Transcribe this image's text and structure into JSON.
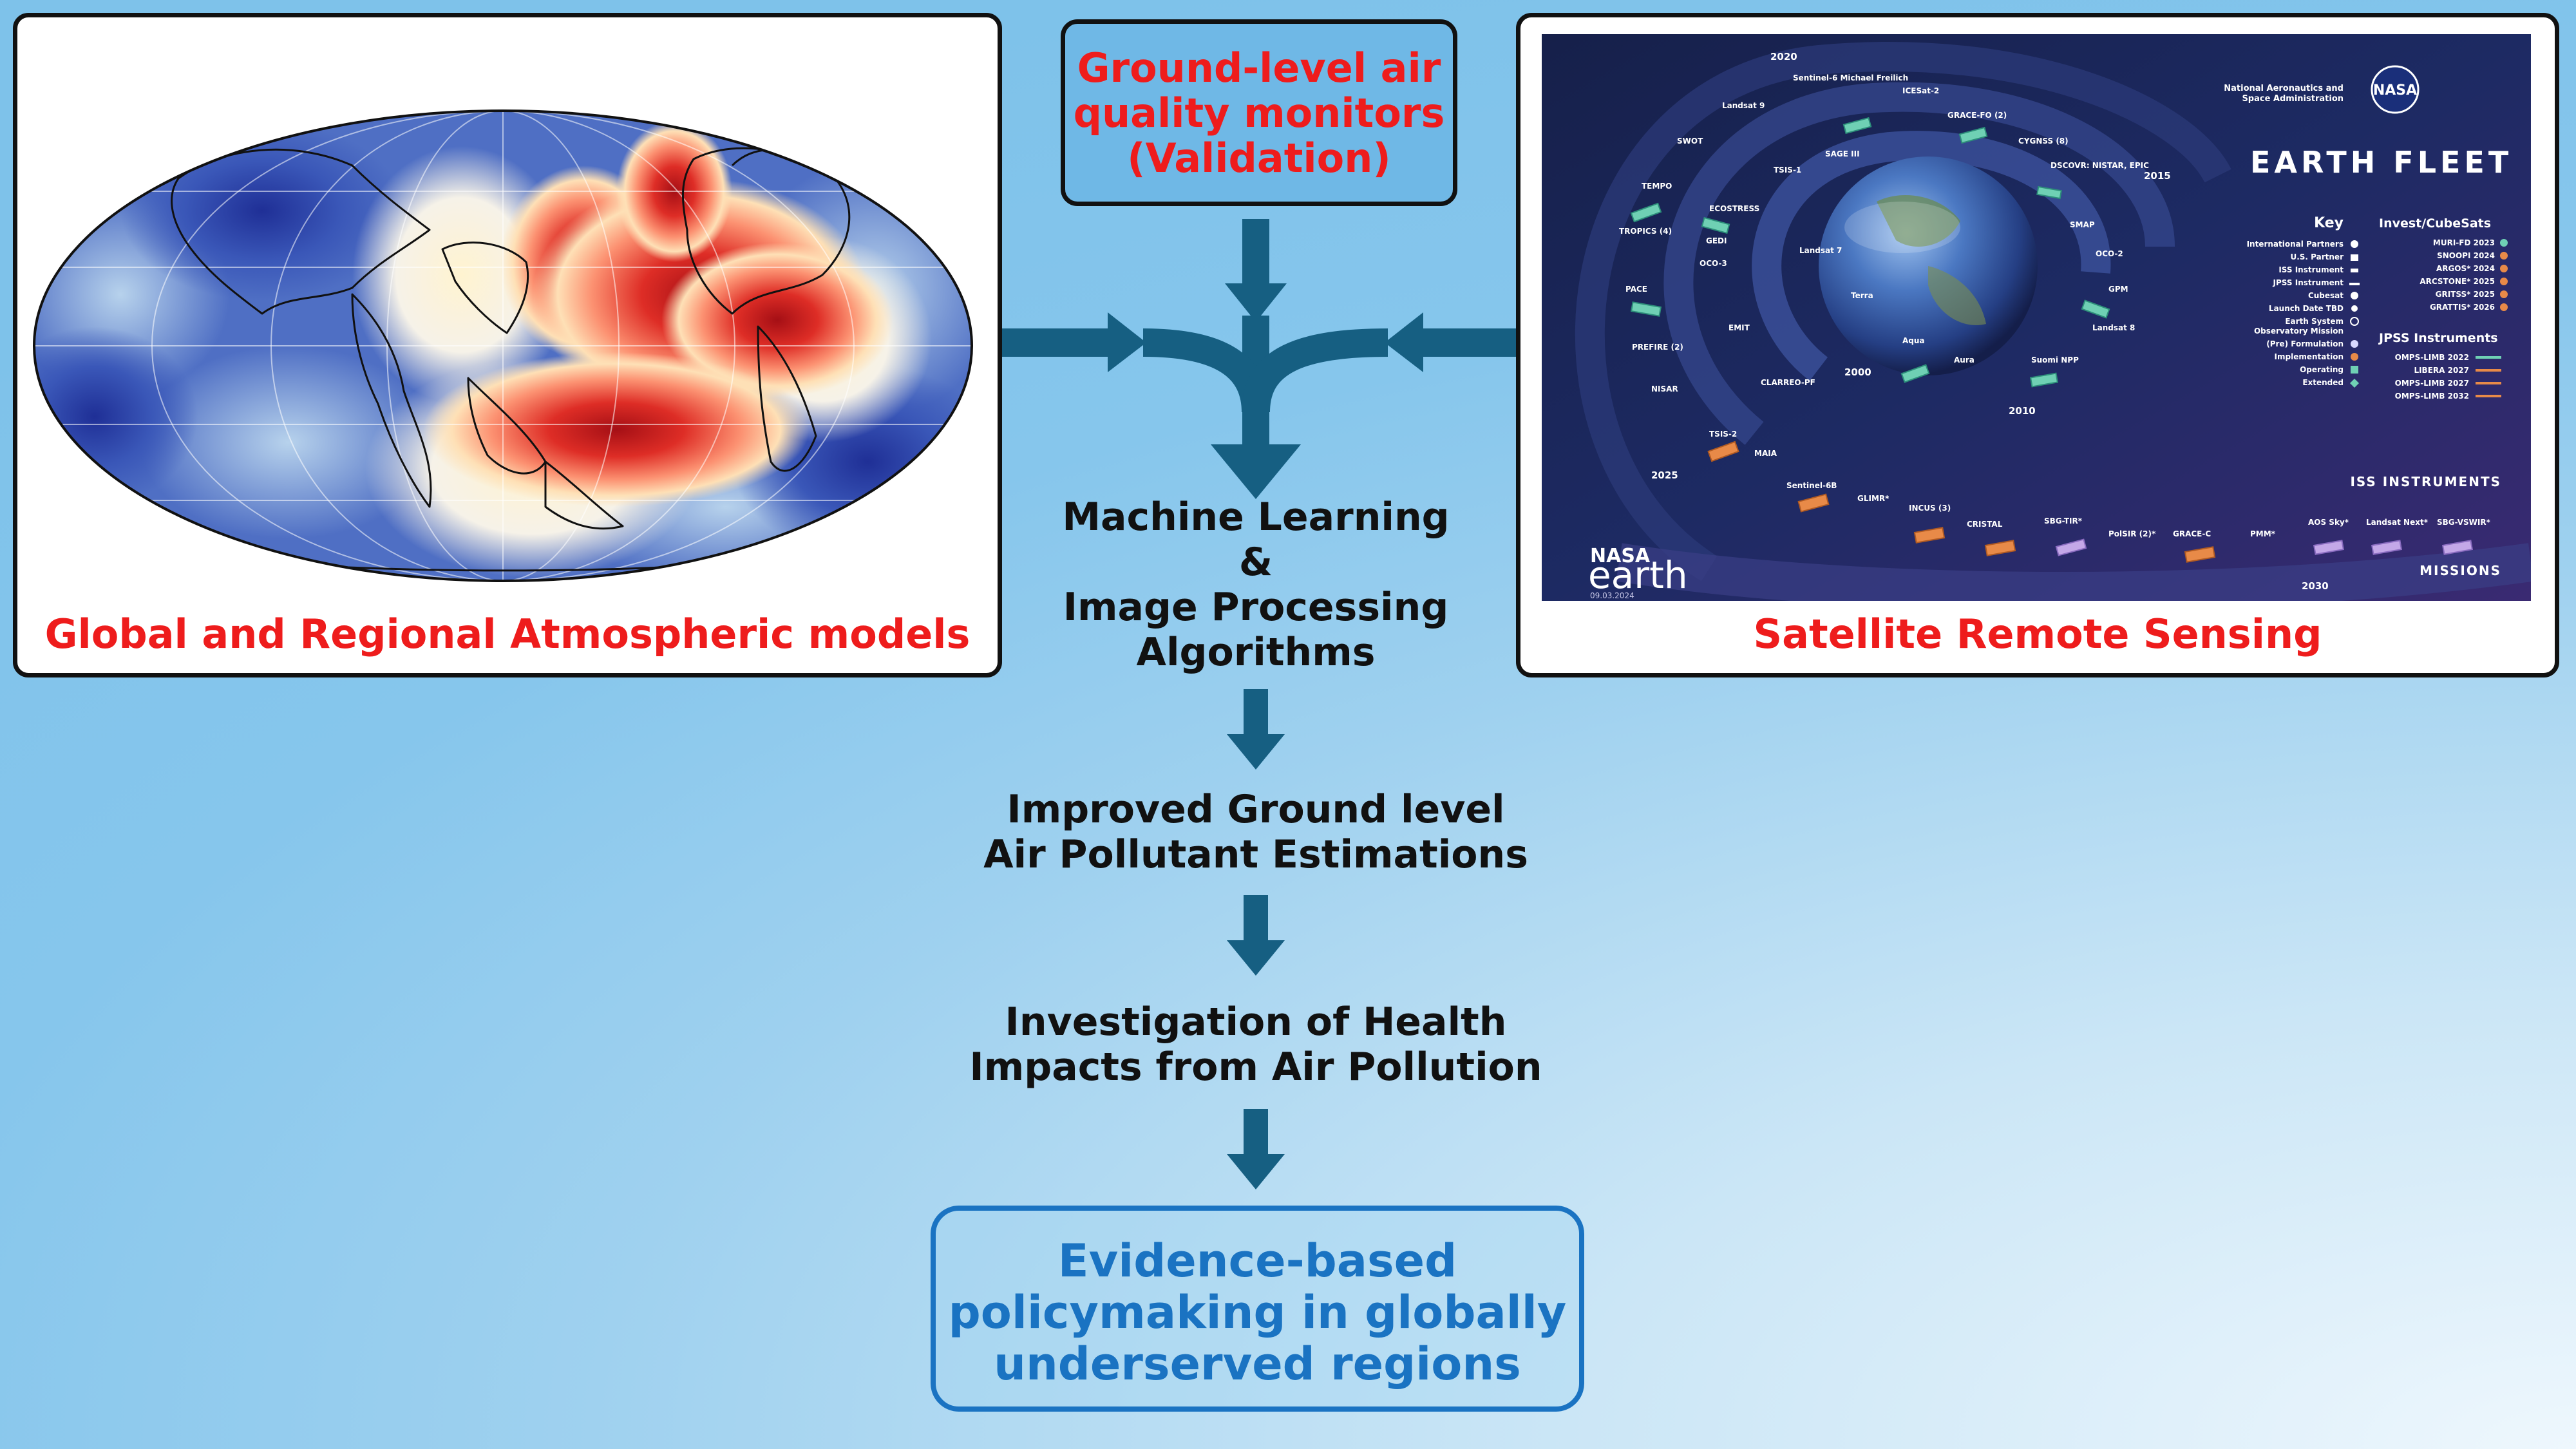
{
  "left_panel": {
    "label": "Global and Regional Atmospheric models"
  },
  "right_panel": {
    "label": "Satellite Remote Sensing",
    "poster": {
      "title": "EARTH FLEET",
      "agency_line1": "National Aeronautics and",
      "agency_line2": "Space Administration",
      "agency_logo": "NASA",
      "brand_top": "NASA",
      "brand_bottom": "earth",
      "date": "09.03.2024",
      "key_heading": "Key",
      "key_items": [
        "International Partners",
        "U.S. Partner",
        "ISS Instrument",
        "JPSS Instrument",
        "Cubesat",
        "Launch Date TBD",
        "Earth System",
        "Observatory Mission",
        "(Pre) Formulation",
        "Implementation",
        "Operating",
        "Extended"
      ],
      "cubesats_heading": "Invest/CubeSats",
      "cubesats": [
        "MURI-FD 2023",
        "SNOOPI 2024",
        "ARGOS* 2024",
        "ARCSTONE* 2025",
        "GRITSS* 2025",
        "GRATTIS* 2026"
      ],
      "jpss_heading": "JPSS Instruments",
      "jpss": [
        "OMPS-LIMB 2022",
        "LIBERA 2027",
        "OMPS-LIMB 2027",
        "OMPS-LIMB 2032"
      ],
      "iss_heading": "ISS INSTRUMENTS",
      "missions_heading": "MISSIONS",
      "years": [
        "2020",
        "2015",
        "2010",
        "2000",
        "2025",
        "2030"
      ],
      "satellites": [
        "Sentinel-6 Michael Freilich",
        "ICESat-2",
        "GRACE-FO (2)",
        "CYGNSS (8)",
        "DSCOVR: NISTAR, EPIC",
        "SMAP",
        "OCO-2",
        "GPM",
        "Landsat 8",
        "Suomi NPP",
        "Aura",
        "Aqua",
        "Terra",
        "Landsat 7",
        "SAGE III",
        "TSIS-1",
        "ECOSTRESS",
        "GEDI",
        "OCO-3",
        "EMIT",
        "CLARREO-PF",
        "Landsat 9",
        "SWOT",
        "TEMPO",
        "TROPICS (4)",
        "PACE",
        "PREFIRE (2)",
        "NISAR",
        "TSIS-2",
        "MAIA",
        "Sentinel-6B",
        "GLIMR*",
        "INCUS (3)",
        "CRISTAL",
        "SBG-TIR*",
        "PolSIR (2)*",
        "GRACE-C",
        "PMM*",
        "AOS Sky*",
        "Landsat Next*",
        "SBG-VSWIR*"
      ]
    }
  },
  "ground_box": {
    "lines": [
      "Ground-level air",
      "quality monitors",
      "(Validation)"
    ]
  },
  "flow": {
    "ml_lines": [
      "Machine Learning",
      "&",
      "Image Processing",
      "Algorithms"
    ],
    "improved_lines": [
      "Improved Ground level",
      "Air Pollutant Estimations"
    ],
    "health_lines": [
      "Investigation of Health",
      "Impacts from Air Pollution"
    ]
  },
  "evidence_box": {
    "lines": [
      "Evidence-based",
      "policymaking in globally",
      "underserved regions"
    ]
  },
  "colors": {
    "arrow": "#165f82",
    "red_label": "#ee1c1c",
    "evidence_blue": "#1a73c2"
  }
}
